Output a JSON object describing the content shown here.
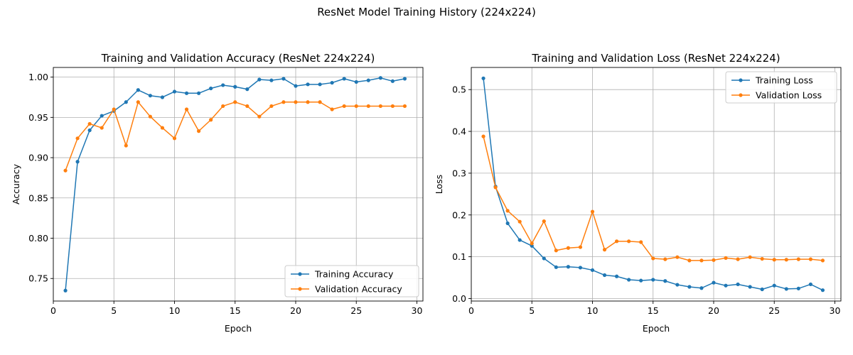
{
  "figure": {
    "suptitle": "ResNet Model Training History (224x224)"
  },
  "chart_data": [
    {
      "type": "line",
      "title": "Training and Validation Accuracy (ResNet 224x224)",
      "xlabel": "Epoch",
      "ylabel": "Accuracy",
      "xlim": [
        0,
        30.5
      ],
      "ylim": [
        0.722,
        1.012
      ],
      "xticks": [
        0,
        5,
        10,
        15,
        20,
        25,
        30
      ],
      "yticks": [
        0.75,
        0.8,
        0.85,
        0.9,
        0.95,
        1.0
      ],
      "ytick_labels": [
        "0.75",
        "0.80",
        "0.85",
        "0.90",
        "0.95",
        "1.00"
      ],
      "grid": true,
      "legend": "lower-right",
      "x": [
        1,
        2,
        3,
        4,
        5,
        6,
        7,
        8,
        9,
        10,
        11,
        12,
        13,
        14,
        15,
        16,
        17,
        18,
        19,
        20,
        21,
        22,
        23,
        24,
        25,
        26,
        27,
        28,
        29
      ],
      "series": [
        {
          "name": "Training Accuracy",
          "color": "#1f77b4",
          "values": [
            0.735,
            0.895,
            0.934,
            0.952,
            0.958,
            0.969,
            0.984,
            0.977,
            0.975,
            0.982,
            0.98,
            0.98,
            0.986,
            0.99,
            0.988,
            0.985,
            0.997,
            0.996,
            0.998,
            0.989,
            0.991,
            0.991,
            0.993,
            0.998,
            0.994,
            0.996,
            0.999,
            0.995,
            0.998
          ]
        },
        {
          "name": "Validation Accuracy",
          "color": "#ff7f0e",
          "values": [
            0.884,
            0.924,
            0.942,
            0.937,
            0.96,
            0.915,
            0.969,
            0.951,
            0.937,
            0.924,
            0.96,
            0.933,
            0.947,
            0.964,
            0.969,
            0.964,
            0.951,
            0.964,
            0.969,
            0.969,
            0.969,
            0.969,
            0.96,
            0.964,
            0.964,
            0.964,
            0.964,
            0.964,
            0.964
          ]
        }
      ]
    },
    {
      "type": "line",
      "title": "Training and Validation Loss (ResNet 224x224)",
      "xlabel": "Epoch",
      "ylabel": "Loss",
      "xlim": [
        0,
        30.5
      ],
      "ylim": [
        -0.006,
        0.553
      ],
      "xticks": [
        0,
        5,
        10,
        15,
        20,
        25,
        30
      ],
      "yticks": [
        0.0,
        0.1,
        0.2,
        0.3,
        0.4,
        0.5
      ],
      "ytick_labels": [
        "0.0",
        "0.1",
        "0.2",
        "0.3",
        "0.4",
        "0.5"
      ],
      "grid": true,
      "legend": "upper-right",
      "x": [
        1,
        2,
        3,
        4,
        5,
        6,
        7,
        8,
        9,
        10,
        11,
        12,
        13,
        14,
        15,
        16,
        17,
        18,
        19,
        20,
        21,
        22,
        23,
        24,
        25,
        26,
        27,
        28,
        29
      ],
      "series": [
        {
          "name": "Training Loss",
          "color": "#1f77b4",
          "values": [
            0.527,
            0.268,
            0.18,
            0.14,
            0.126,
            0.096,
            0.075,
            0.076,
            0.074,
            0.068,
            0.056,
            0.053,
            0.045,
            0.043,
            0.045,
            0.042,
            0.033,
            0.028,
            0.025,
            0.038,
            0.031,
            0.034,
            0.028,
            0.022,
            0.031,
            0.023,
            0.024,
            0.034,
            0.02
          ]
        },
        {
          "name": "Validation Loss",
          "color": "#ff7f0e",
          "values": [
            0.388,
            0.266,
            0.21,
            0.184,
            0.132,
            0.185,
            0.115,
            0.121,
            0.123,
            0.208,
            0.117,
            0.137,
            0.137,
            0.135,
            0.096,
            0.094,
            0.099,
            0.091,
            0.091,
            0.092,
            0.097,
            0.094,
            0.099,
            0.095,
            0.093,
            0.093,
            0.094,
            0.094,
            0.091
          ]
        }
      ]
    }
  ]
}
